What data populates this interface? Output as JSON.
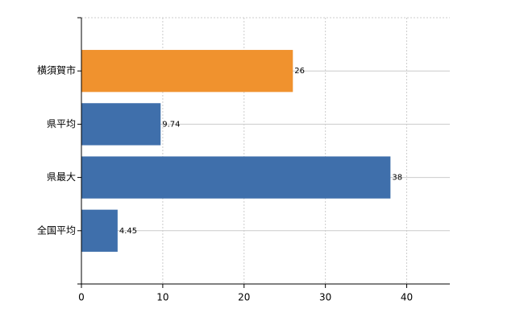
{
  "chart_data": {
    "type": "bar",
    "orientation": "horizontal",
    "categories": [
      "横須賀市",
      "県平均",
      "県最大",
      "全国平均"
    ],
    "values": [
      26,
      9.74,
      38,
      4.45
    ],
    "colors": [
      "#f0922e",
      "#3f6fab",
      "#3f6fab",
      "#3f6fab"
    ],
    "xlim": [
      0,
      45.3
    ],
    "xticks": [
      0,
      10,
      20,
      30,
      40
    ],
    "grid": true
  }
}
